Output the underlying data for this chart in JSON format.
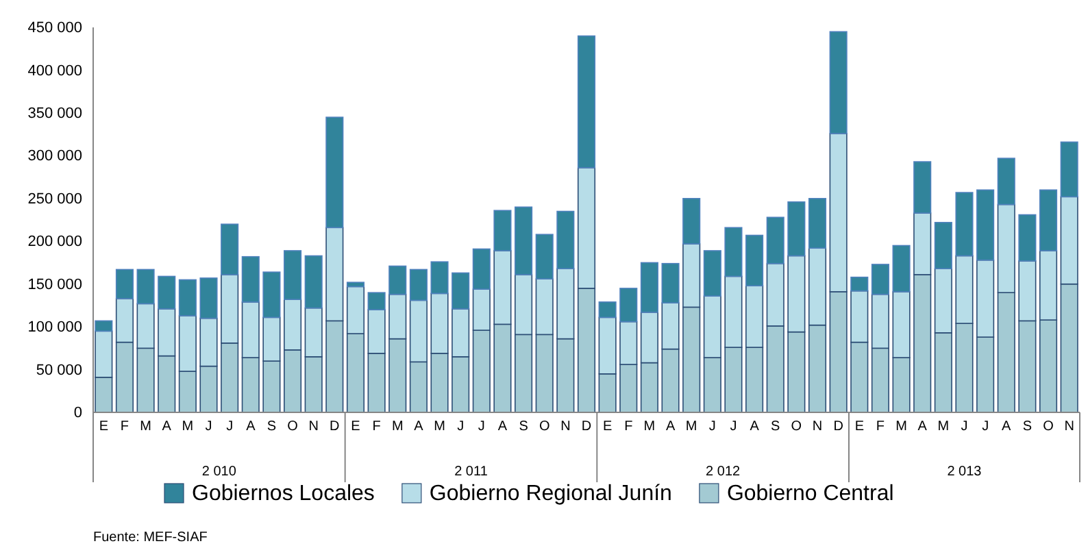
{
  "chart_data": {
    "type": "bar",
    "stacked": true,
    "categories": [
      "E",
      "F",
      "M",
      "A",
      "M",
      "J",
      "J",
      "A",
      "S",
      "O",
      "N",
      "D",
      "E",
      "F",
      "M",
      "A",
      "M",
      "J",
      "J",
      "A",
      "S",
      "O",
      "N",
      "D",
      "E",
      "F",
      "M",
      "A",
      "M",
      "J",
      "J",
      "A",
      "S",
      "O",
      "N",
      "D",
      "E",
      "F",
      "M",
      "A",
      "M",
      "J",
      "J",
      "A",
      "S",
      "O",
      "N"
    ],
    "series": [
      {
        "name": "Gobierno Central",
        "color": "#a3cad3",
        "values": [
          41000,
          82000,
          75000,
          66000,
          48000,
          54000,
          81000,
          64000,
          60000,
          73000,
          65000,
          107000,
          92000,
          69000,
          86000,
          59000,
          69000,
          65000,
          96000,
          103000,
          91000,
          91000,
          86000,
          145000,
          45000,
          56000,
          58000,
          74000,
          123000,
          64000,
          76000,
          76000,
          101000,
          94000,
          102000,
          141000,
          82000,
          75000,
          64000,
          161000,
          93000,
          104000,
          88000,
          140000,
          107000,
          108000,
          150000
        ]
      },
      {
        "name": "Gobierno Regional Junín",
        "color": "#b7dde8",
        "values": [
          54000,
          51000,
          52000,
          55000,
          65000,
          56000,
          80000,
          65000,
          51000,
          59000,
          57000,
          109000,
          55000,
          51000,
          52000,
          72000,
          70000,
          56000,
          48000,
          86000,
          70000,
          65000,
          82000,
          141000,
          66000,
          50000,
          59000,
          54000,
          74000,
          72000,
          83000,
          72000,
          73000,
          89000,
          90000,
          185000,
          60000,
          63000,
          77000,
          72000,
          75000,
          79000,
          90000,
          103000,
          70000,
          81000,
          102000
        ]
      },
      {
        "name": "Gobiernos Locales",
        "color": "#31849b",
        "values": [
          12000,
          34000,
          40000,
          38000,
          42000,
          47000,
          59000,
          53000,
          53000,
          57000,
          61000,
          129000,
          5000,
          20000,
          33000,
          36000,
          37000,
          42000,
          47000,
          47000,
          79000,
          52000,
          67000,
          154000,
          18000,
          39000,
          58000,
          46000,
          53000,
          53000,
          57000,
          59000,
          54000,
          63000,
          58000,
          119000,
          16000,
          35000,
          54000,
          60000,
          54000,
          74000,
          82000,
          54000,
          54000,
          71000,
          64000
        ]
      }
    ],
    "ylim": [
      0,
      450000
    ],
    "yticks": [
      0,
      {
        "value": 50000,
        "label": "50 000"
      },
      {
        "value": 100000,
        "label": "100 000"
      },
      {
        "value": 150000,
        "label": "150 000"
      },
      {
        "value": 200000,
        "label": "200 000"
      },
      {
        "value": 250000,
        "label": "250 000"
      },
      {
        "value": 300000,
        "label": "300 000"
      },
      {
        "value": 350000,
        "label": "350 000"
      },
      {
        "value": 400000,
        "label": "400 000"
      },
      {
        "value": 450000,
        "label": "450 000"
      }
    ],
    "grid": false,
    "legend": "bottom",
    "annotations": [
      "2 010",
      "2 011",
      "2 012",
      "2 013",
      "Fuente: MEF-SIAF"
    ]
  }
}
